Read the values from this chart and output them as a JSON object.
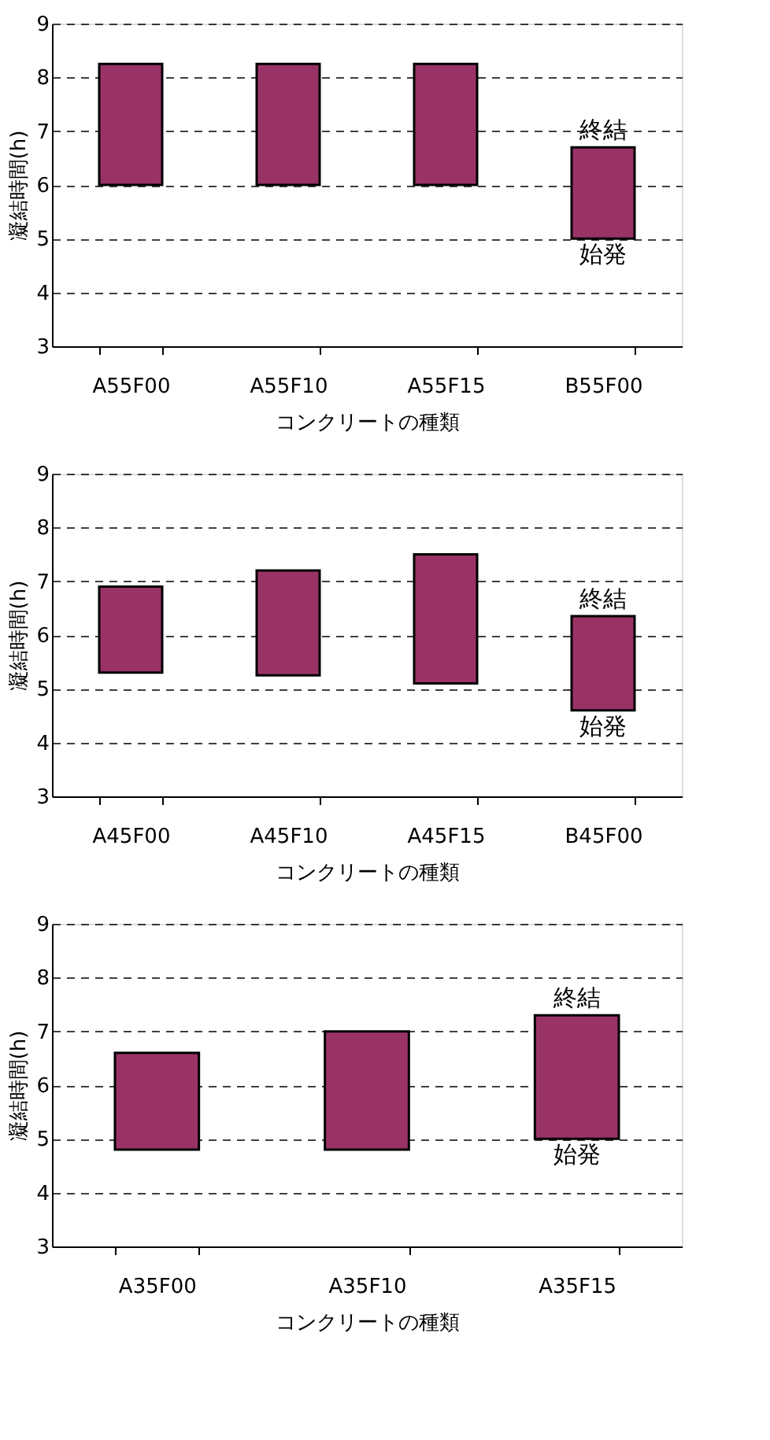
{
  "chart_data": [
    {
      "type": "bar",
      "categories": [
        "A55F00",
        "A55F10",
        "A55F15",
        "B55F00"
      ],
      "values": [
        2.25,
        2.25,
        2.25,
        1.7
      ],
      "base": [
        6,
        6,
        6,
        5
      ],
      "color": "#993366",
      "ylim": [
        3,
        9
      ],
      "yticks": [
        3,
        4,
        5,
        6,
        7,
        8,
        9
      ],
      "grid": "y",
      "ylabel": "凝結時間(h)",
      "xlabel": "コンクリートの種類",
      "annotations": [
        {
          "text": "終結",
          "x": "B55F00",
          "y": 6.7
        },
        {
          "text": "始発",
          "x": "B55F00",
          "y": 5
        }
      ]
    },
    {
      "type": "bar",
      "categories": [
        "A45F00",
        "A45F10",
        "A45F15",
        "B45F00"
      ],
      "values": [
        1.6,
        1.95,
        2.4,
        1.75
      ],
      "base": [
        5.3,
        5.25,
        5.1,
        4.6
      ],
      "color": "#993366",
      "ylim": [
        3,
        9
      ],
      "yticks": [
        3,
        4,
        5,
        6,
        7,
        8,
        9
      ],
      "grid": "y",
      "ylabel": "凝結時間(h)",
      "xlabel": "コンクリートの種類",
      "annotations": [
        {
          "text": "終結",
          "x": "B45F00",
          "y": 6.35
        },
        {
          "text": "始発",
          "x": "B45F00",
          "y": 4.6
        }
      ]
    },
    {
      "type": "bar",
      "categories": [
        "A35F00",
        "A35F10",
        "A35F15"
      ],
      "values": [
        1.8,
        2.2,
        2.3
      ],
      "base": [
        4.8,
        4.8,
        5.0
      ],
      "color": "#993366",
      "ylim": [
        3,
        9
      ],
      "yticks": [
        3,
        4,
        5,
        6,
        7,
        8,
        9
      ],
      "grid": "y",
      "ylabel": "凝結時間(h)",
      "xlabel": "コンクリートの種類",
      "annotations": [
        {
          "text": "終結",
          "x": "A35F15",
          "y": 7.3
        },
        {
          "text": "始発",
          "x": "A35F15",
          "y": 5.0
        }
      ]
    }
  ]
}
